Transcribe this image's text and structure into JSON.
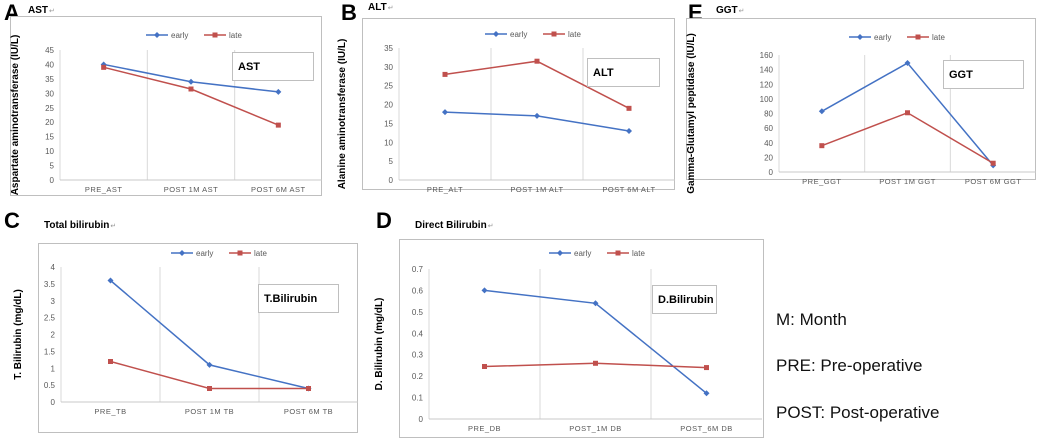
{
  "panels": {
    "A": {
      "letter": "A",
      "title": "AST",
      "title_mark": "↵"
    },
    "B": {
      "letter": "B",
      "title": "ALT",
      "title_mark": "↵"
    },
    "C": {
      "letter": "C",
      "title": "Total bilirubin",
      "title_mark": "↵"
    },
    "D": {
      "letter": "D",
      "title": "Direct Bilirubin",
      "title_mark": "↵"
    },
    "E": {
      "letter": "E",
      "title": "GGT",
      "title_mark": "↵"
    }
  },
  "notes": {
    "m": "M: Month",
    "pre": "PRE: Pre-operative",
    "post": "POST: Post-operative"
  },
  "colors": {
    "early": "#4472c4",
    "late": "#c0504d",
    "grid": "#d9d9d9",
    "border": "#bfbfbf"
  },
  "chart_data": [
    {
      "id": "A",
      "type": "line",
      "title": "AST",
      "box_label": "AST",
      "ylabel": "Aspartate aminotransferase (IU/L)",
      "categories": [
        "PRE_AST",
        "POST 1M AST",
        "POST 6M AST"
      ],
      "ylim": [
        0,
        45
      ],
      "ystep": 5,
      "series": [
        {
          "name": "early",
          "values": [
            40,
            34,
            30.5
          ]
        },
        {
          "name": "late",
          "values": [
            39,
            31.5,
            19
          ]
        }
      ]
    },
    {
      "id": "B",
      "type": "line",
      "title": "ALT",
      "box_label": "ALT",
      "ylabel": "Alanine aminotransferase (IU/L)",
      "categories": [
        "PRE_ALT",
        "POST 1M ALT",
        "POST 6M ALT"
      ],
      "ylim": [
        0,
        35
      ],
      "ystep": 5,
      "series": [
        {
          "name": "early",
          "values": [
            18,
            17,
            13
          ]
        },
        {
          "name": "late",
          "values": [
            28,
            31.5,
            19
          ]
        }
      ]
    },
    {
      "id": "E",
      "type": "line",
      "title": "GGT",
      "box_label": "GGT",
      "ylabel": "Gamma-Glutamyl peptidase (IU/L)",
      "categories": [
        "PRE_GGT",
        "POST 1M GGT",
        "POST 6M GGT"
      ],
      "ylim": [
        0,
        160
      ],
      "ystep": 20,
      "series": [
        {
          "name": "early",
          "values": [
            83,
            149,
            9
          ]
        },
        {
          "name": "late",
          "values": [
            36,
            81,
            12
          ]
        }
      ]
    },
    {
      "id": "C",
      "type": "line",
      "title": "Total bilirubin",
      "box_label": "T.Bilirubin",
      "ylabel": "T. Bilirubin (mg/dL)",
      "categories": [
        "PRE_TB",
        "POST 1M TB",
        "POST 6M TB"
      ],
      "ylim": [
        0,
        4
      ],
      "ystep": 0.5,
      "series": [
        {
          "name": "early",
          "values": [
            3.6,
            1.1,
            0.4
          ]
        },
        {
          "name": "late",
          "values": [
            1.2,
            0.4,
            0.4
          ]
        }
      ]
    },
    {
      "id": "D",
      "type": "line",
      "title": "Direct Bilirubin",
      "box_label": "D.Bilirubin",
      "ylabel": "D. Bilirubin (mg/dL)",
      "categories": [
        "PRE_DB",
        "POST_1M DB",
        "POST_6M DB"
      ],
      "ylim": [
        0,
        0.7
      ],
      "ystep": 0.1,
      "series": [
        {
          "name": "early",
          "values": [
            0.6,
            0.54,
            0.12
          ]
        },
        {
          "name": "late",
          "values": [
            0.245,
            0.26,
            0.24
          ]
        }
      ]
    }
  ]
}
